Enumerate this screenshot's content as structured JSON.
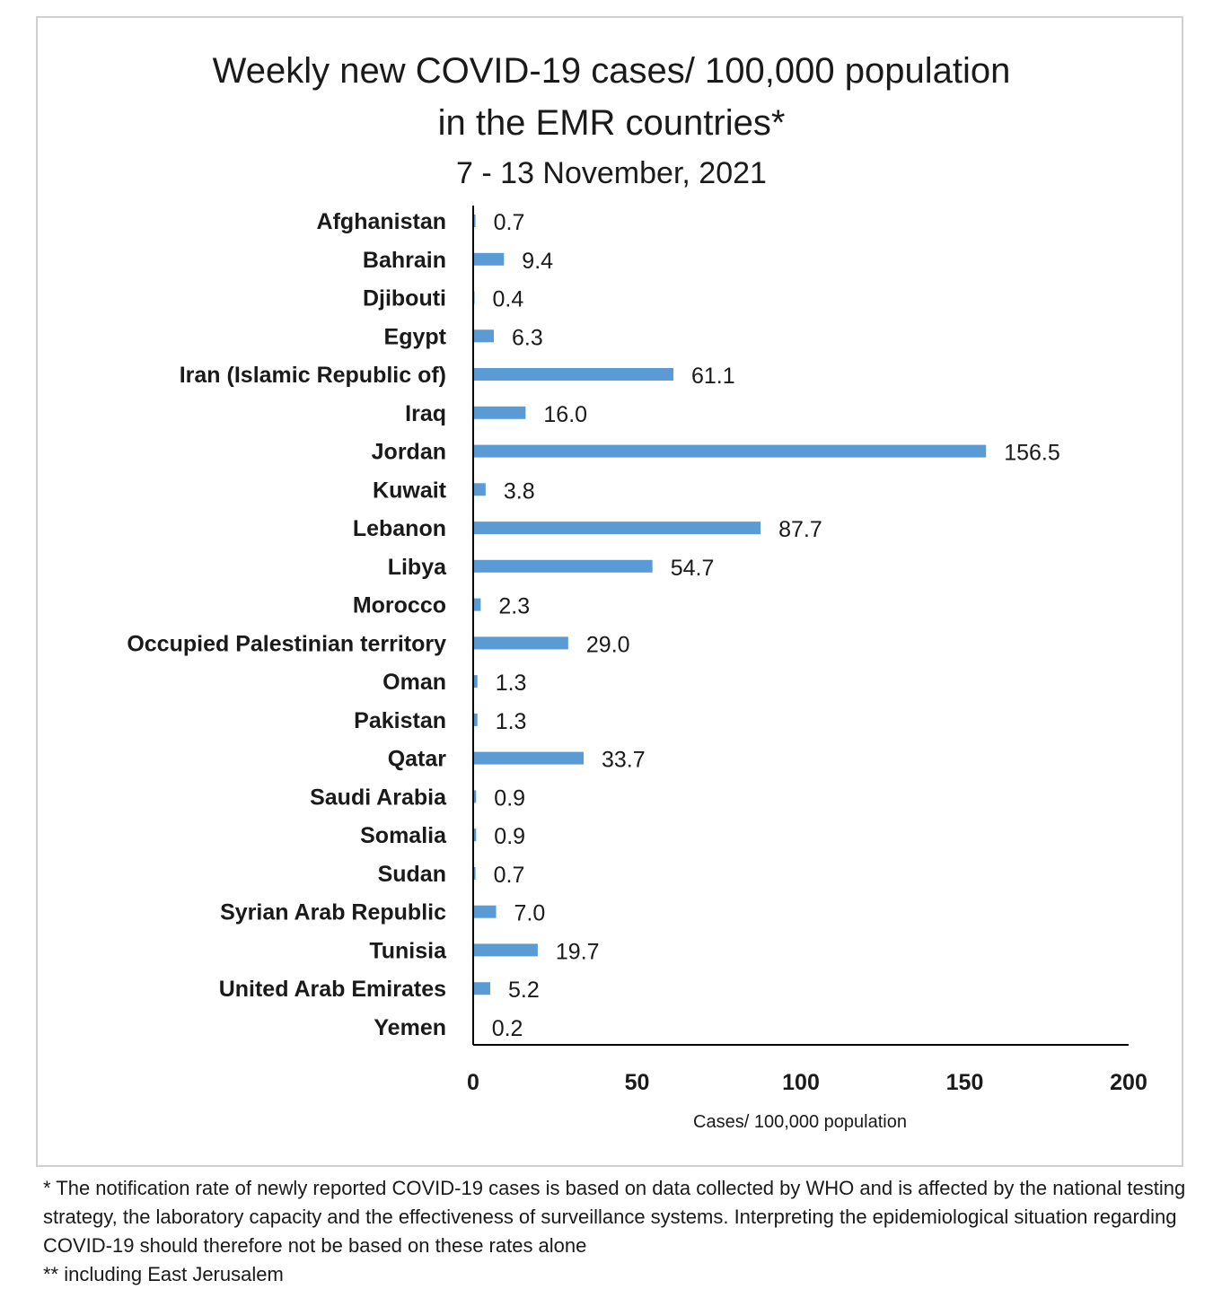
{
  "chart_data": {
    "type": "bar",
    "orientation": "horizontal",
    "title_lines": [
      "Weekly new COVID-19 cases/ 100,000 population",
      "in the EMR countries*"
    ],
    "subtitle": "7 - 13 November, 2021",
    "xlabel": "Cases/ 100,000 population",
    "ylabel": "",
    "xlim": [
      0,
      200
    ],
    "xticks": [
      "0",
      "50",
      "100",
      "150",
      "200"
    ],
    "grid": false,
    "legend": "none",
    "bar_color": "#5b9bd5",
    "categories": [
      "Afghanistan",
      "Bahrain",
      "Djibouti",
      "Egypt",
      "Iran (Islamic Republic of)",
      "Iraq",
      "Jordan",
      "Kuwait",
      "Lebanon",
      "Libya",
      "Morocco",
      "Occupied Palestinian territory",
      "Oman",
      "Pakistan",
      "Qatar",
      "Saudi Arabia",
      "Somalia",
      "Sudan",
      "Syrian Arab Republic",
      "Tunisia",
      "United Arab Emirates",
      "Yemen"
    ],
    "values": [
      0.7,
      9.4,
      0.4,
      6.3,
      61.1,
      16.0,
      156.5,
      3.8,
      87.7,
      54.7,
      2.3,
      29.0,
      1.3,
      1.3,
      33.7,
      0.9,
      0.9,
      0.7,
      7.0,
      19.7,
      5.2,
      0.2
    ],
    "value_labels": [
      "0.7",
      "9.4",
      "0.4",
      "6.3",
      "61.1",
      "16.0",
      "156.5",
      "3.8",
      "87.7",
      "54.7",
      "2.3",
      "29.0",
      "1.3",
      "1.3",
      "33.7",
      "0.9",
      "0.9",
      "0.7",
      "7.0",
      "19.7",
      "5.2",
      "0.2"
    ]
  },
  "footnote": {
    "line1": "* The notification rate of newly reported COVID-19 cases is based on data collected by WHO and is affected by the national testing strategy, the laboratory capacity and the effectiveness of surveillance systems. Interpreting the epidemiological situation regarding COVID-19 should therefore not be based on these rates alone",
    "line2": "** including East Jerusalem"
  }
}
